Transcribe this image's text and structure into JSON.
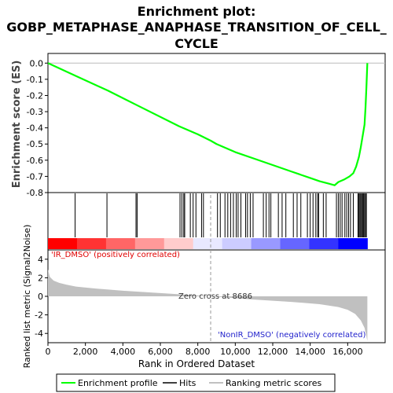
{
  "chart_data": {
    "type": "line",
    "title_lines": [
      "Enrichment plot:",
      "GOBP_METAPHASE_ANAPHASE_TRANSITION_OF_CELL_",
      "CYCLE"
    ],
    "es_panel": {
      "ylabel": "Enrichment score (ES)",
      "ylim": [
        -0.8,
        0.05
      ],
      "yticks": [
        "0.0",
        "-0.1",
        "-0.2",
        "-0.3",
        "-0.4",
        "-0.5",
        "-0.6",
        "-0.7",
        "-0.8"
      ],
      "ytick_values": [
        0.0,
        -0.1,
        -0.2,
        -0.3,
        -0.4,
        -0.5,
        -0.6,
        -0.7,
        -0.8
      ],
      "zero_line": true,
      "profile": {
        "name": "Enrichment profile",
        "color": "#00ff00",
        "x": [
          0,
          1500,
          3200,
          4750,
          7000,
          8000,
          8700,
          9000,
          10000,
          11000,
          12000,
          13000,
          13500,
          14000,
          14500,
          15000,
          15300,
          15500,
          15800,
          16100,
          16300,
          16450,
          16600,
          16700,
          16800,
          16900,
          16950,
          17000,
          17050
        ],
        "y": [
          0.0,
          -0.08,
          -0.17,
          -0.26,
          -0.39,
          -0.44,
          -0.48,
          -0.5,
          -0.55,
          -0.59,
          -0.63,
          -0.67,
          -0.69,
          -0.71,
          -0.73,
          -0.745,
          -0.755,
          -0.735,
          -0.72,
          -0.7,
          -0.68,
          -0.64,
          -0.58,
          -0.52,
          -0.45,
          -0.38,
          -0.28,
          -0.15,
          0.0
        ]
      }
    },
    "hits": {
      "name": "Hits",
      "color": "#000000",
      "positions": [
        1450,
        3150,
        4700,
        4760,
        7050,
        7150,
        7250,
        7300,
        7600,
        7750,
        7900,
        8200,
        8300,
        9050,
        9200,
        9450,
        9600,
        9750,
        9900,
        10050,
        10150,
        10300,
        10550,
        10650,
        10800,
        10950,
        11500,
        11650,
        11800,
        11900,
        12300,
        12500,
        12700,
        13100,
        13300,
        13500,
        13850,
        14000,
        14150,
        14300,
        14400,
        14450,
        14700,
        14850,
        15400,
        15500,
        15600,
        15700,
        15850,
        15950,
        16050,
        16150,
        16300,
        16550,
        16600,
        16650,
        16700,
        16750,
        16800,
        16850,
        16900,
        16950,
        17000
      ]
    },
    "heatmap_bar": {
      "colors": [
        "#ff0000",
        "#ff3333",
        "#ff6666",
        "#ff9999",
        "#ffcccc",
        "#e8e8ff",
        "#ccccff",
        "#9999ff",
        "#6666ff",
        "#3333ff",
        "#0000ff"
      ],
      "positive_label": "'IR_DMSO' (positively correlated)",
      "negative_label": "'NonIR_DMSO' (negatively correlated)"
    },
    "metric_panel": {
      "ylabel": "Ranked list metric (Signal2Noise)",
      "ylim": [
        -5,
        5
      ],
      "yticks": [
        "4",
        "2",
        "0",
        "-2",
        "-4"
      ],
      "ytick_values": [
        4,
        2,
        0,
        -2,
        -4
      ],
      "zero_cross_label": "Zero cross at 8686",
      "zero_cross": 8686,
      "metric": {
        "name": "Ranking metric scores",
        "color": "#c0c0c0",
        "x": [
          0,
          100,
          300,
          600,
          1000,
          1500,
          2500,
          4000,
          6000,
          8686,
          11000,
          13000,
          14500,
          15500,
          16000,
          16400,
          16700,
          16900,
          17000,
          17050
        ],
        "y": [
          2.9,
          2.1,
          1.7,
          1.45,
          1.25,
          1.05,
          0.85,
          0.6,
          0.35,
          0.0,
          -0.35,
          -0.6,
          -0.85,
          -1.15,
          -1.45,
          -1.9,
          -2.6,
          -3.4,
          -4.3,
          -4.8
        ]
      }
    },
    "xaxis": {
      "xlabel": "Rank in Ordered Dataset",
      "xlim": [
        0,
        18000
      ],
      "xticks": [
        "0",
        "2,000",
        "4,000",
        "6,000",
        "8,000",
        "10,000",
        "12,000",
        "14,000",
        "16,000"
      ],
      "xtick_values": [
        0,
        2000,
        4000,
        6000,
        8000,
        10000,
        12000,
        14000,
        16000
      ],
      "list_length": 17050
    },
    "legend": {
      "placement": "bottom",
      "items": [
        "Enrichment profile",
        "Hits",
        "Ranking metric scores"
      ]
    }
  }
}
